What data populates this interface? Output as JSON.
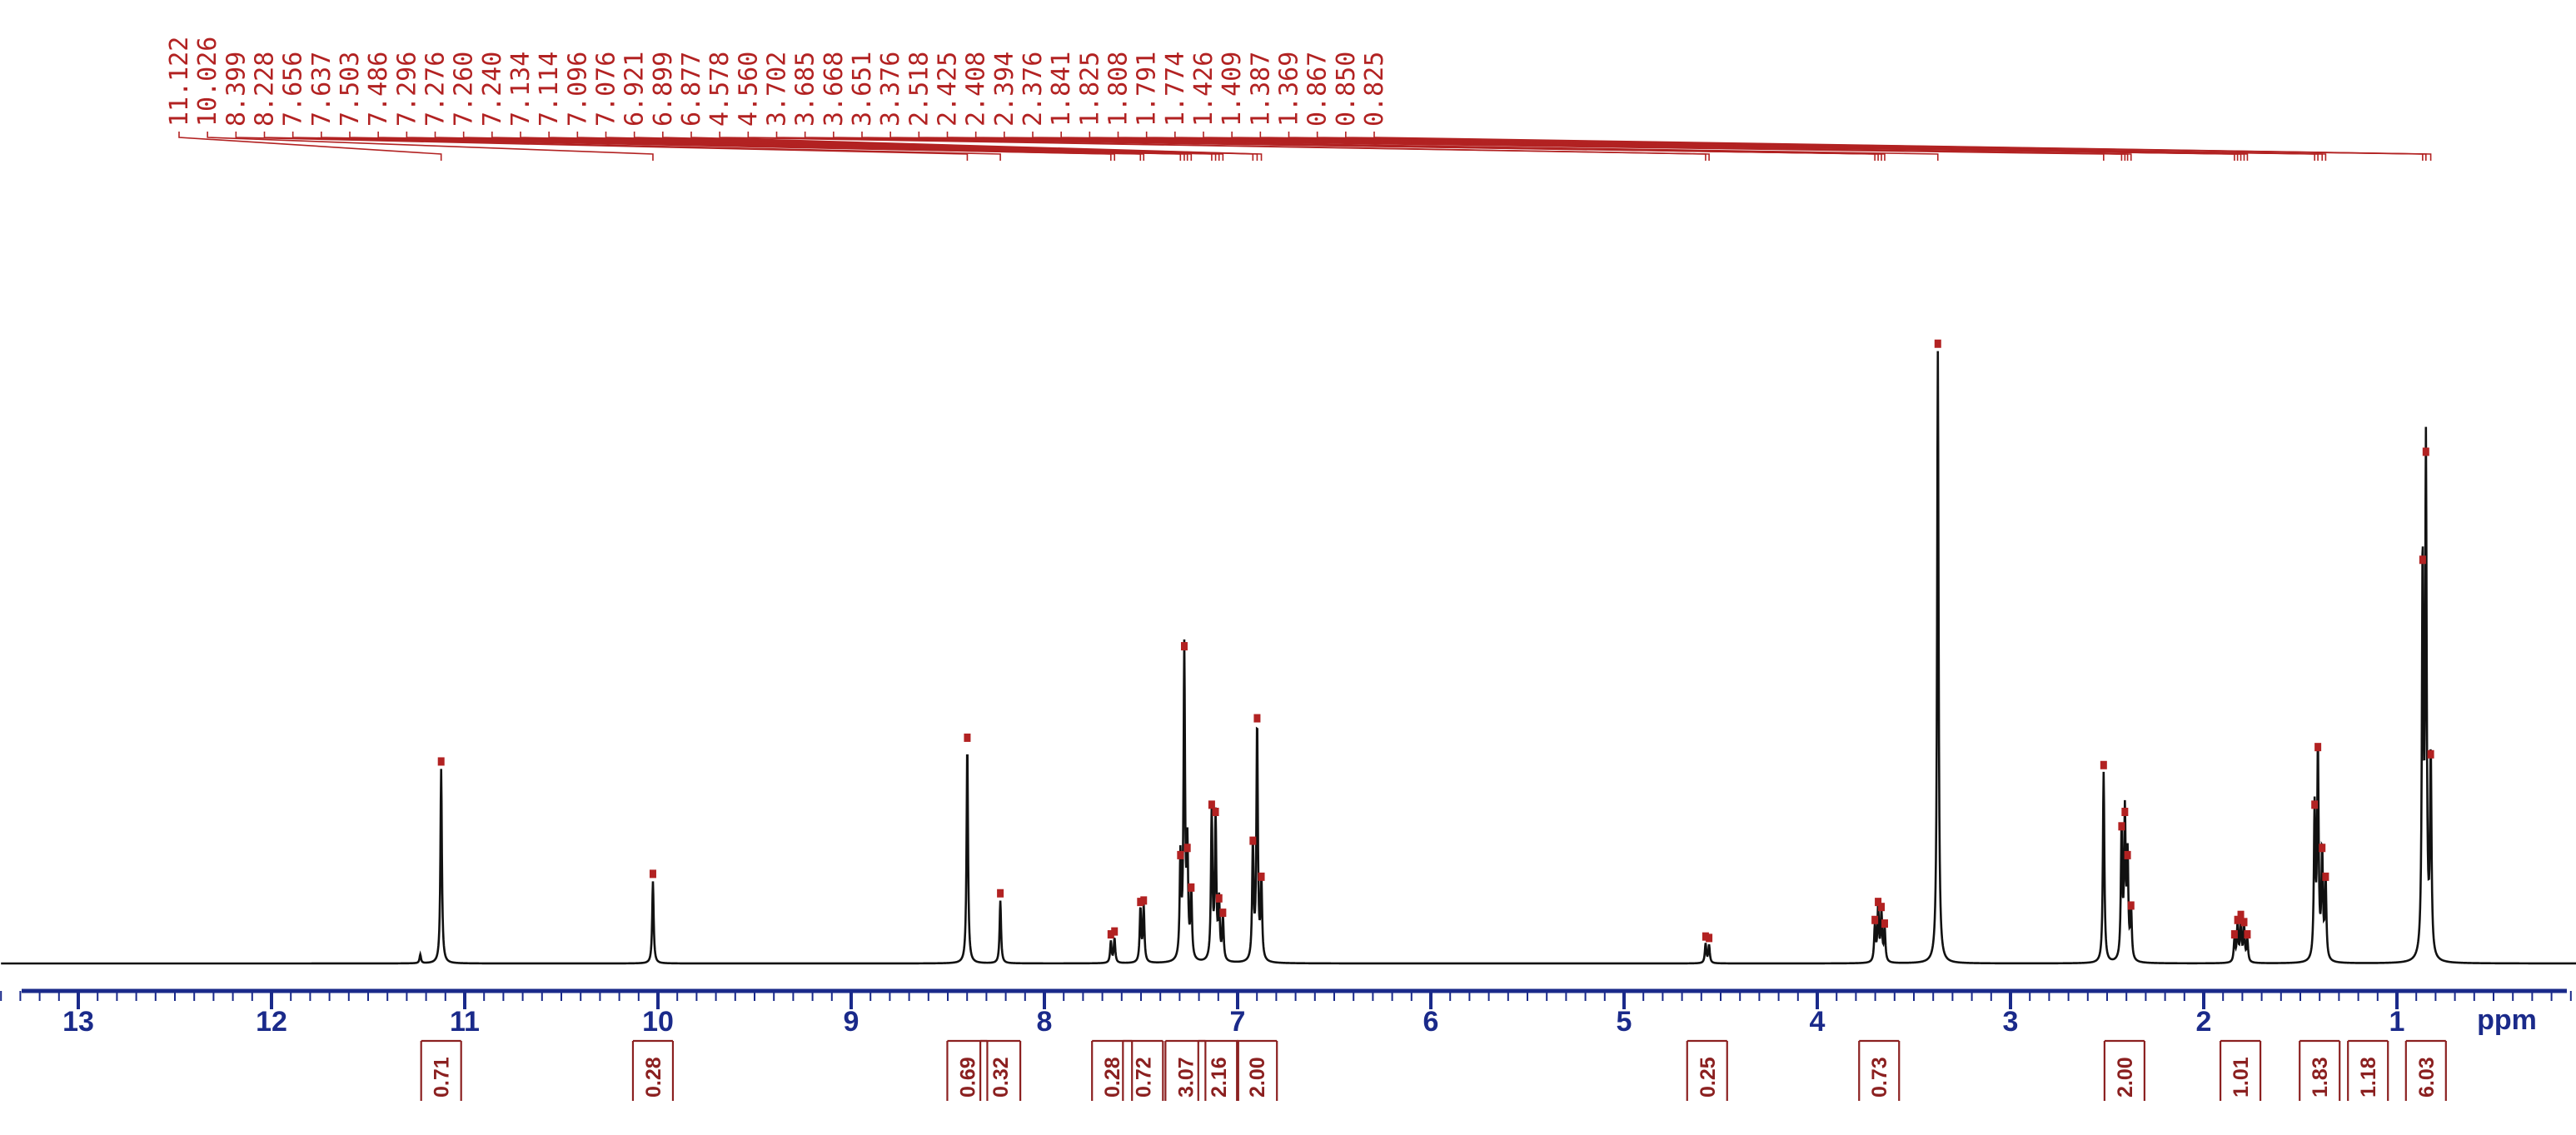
{
  "chart_data": {
    "type": "line",
    "title": "",
    "xlabel": "ppm",
    "ylabel": "",
    "x_reversed": true,
    "xlim": [
      13.4,
      -0.6
    ],
    "grid": false,
    "colors": {
      "spectrum": "#111111",
      "annotation": "#b22222",
      "axis": "#1a2a8a",
      "integral": "#8b2020"
    },
    "x_ticks": [
      {
        "value": 13,
        "label": "13"
      },
      {
        "value": 12,
        "label": "12"
      },
      {
        "value": 11,
        "label": "11"
      },
      {
        "value": 10,
        "label": "10"
      },
      {
        "value": 9,
        "label": "9"
      },
      {
        "value": 8,
        "label": "8"
      },
      {
        "value": 7,
        "label": "7"
      },
      {
        "value": 6,
        "label": "6"
      },
      {
        "value": 5,
        "label": "5"
      },
      {
        "value": 4,
        "label": "4"
      },
      {
        "value": 3,
        "label": "3"
      },
      {
        "value": 2,
        "label": "2"
      },
      {
        "value": 1,
        "label": "1"
      }
    ],
    "peak_labels": [
      "11.122",
      "10.026",
      "8.399",
      "8.228",
      "7.656",
      "7.637",
      "7.503",
      "7.486",
      "7.296",
      "7.276",
      "7.260",
      "7.240",
      "7.134",
      "7.114",
      "7.096",
      "7.076",
      "6.921",
      "6.899",
      "6.877",
      "4.578",
      "4.560",
      "3.702",
      "3.685",
      "3.668",
      "3.651",
      "3.376",
      "2.518",
      "2.425",
      "2.408",
      "2.394",
      "2.376",
      "1.841",
      "1.825",
      "1.808",
      "1.791",
      "1.774",
      "1.426",
      "1.409",
      "1.387",
      "1.369",
      "0.867",
      "0.850",
      "0.825"
    ],
    "peaks": [
      {
        "ppm": 11.23,
        "height": 0.012
      },
      {
        "ppm": 11.122,
        "height": 0.27
      },
      {
        "ppm": 10.026,
        "height": 0.114
      },
      {
        "ppm": 8.399,
        "height": 0.303
      },
      {
        "ppm": 8.228,
        "height": 0.087
      },
      {
        "ppm": 7.656,
        "height": 0.03
      },
      {
        "ppm": 7.637,
        "height": 0.034
      },
      {
        "ppm": 7.503,
        "height": 0.075
      },
      {
        "ppm": 7.486,
        "height": 0.077
      },
      {
        "ppm": 7.296,
        "height": 0.14
      },
      {
        "ppm": 7.276,
        "height": 0.43
      },
      {
        "ppm": 7.26,
        "height": 0.15
      },
      {
        "ppm": 7.24,
        "height": 0.095
      },
      {
        "ppm": 7.134,
        "height": 0.21
      },
      {
        "ppm": 7.114,
        "height": 0.2
      },
      {
        "ppm": 7.096,
        "height": 0.08
      },
      {
        "ppm": 7.076,
        "height": 0.06
      },
      {
        "ppm": 6.921,
        "height": 0.16
      },
      {
        "ppm": 6.899,
        "height": 0.33
      },
      {
        "ppm": 6.877,
        "height": 0.11
      },
      {
        "ppm": 4.578,
        "height": 0.027
      },
      {
        "ppm": 4.56,
        "height": 0.025
      },
      {
        "ppm": 3.702,
        "height": 0.05
      },
      {
        "ppm": 3.685,
        "height": 0.075
      },
      {
        "ppm": 3.668,
        "height": 0.068
      },
      {
        "ppm": 3.651,
        "height": 0.045
      },
      {
        "ppm": 3.376,
        "height": 0.85
      },
      {
        "ppm": 2.518,
        "height": 0.265
      },
      {
        "ppm": 2.425,
        "height": 0.18
      },
      {
        "ppm": 2.408,
        "height": 0.2
      },
      {
        "ppm": 2.394,
        "height": 0.14
      },
      {
        "ppm": 2.376,
        "height": 0.07
      },
      {
        "ppm": 1.841,
        "height": 0.03
      },
      {
        "ppm": 1.825,
        "height": 0.05
      },
      {
        "ppm": 1.808,
        "height": 0.057
      },
      {
        "ppm": 1.791,
        "height": 0.047
      },
      {
        "ppm": 1.774,
        "height": 0.03
      },
      {
        "ppm": 1.426,
        "height": 0.21
      },
      {
        "ppm": 1.409,
        "height": 0.29
      },
      {
        "ppm": 1.387,
        "height": 0.15
      },
      {
        "ppm": 1.369,
        "height": 0.11
      },
      {
        "ppm": 0.867,
        "height": 0.55
      },
      {
        "ppm": 0.85,
        "height": 0.7
      },
      {
        "ppm": 0.825,
        "height": 0.28
      }
    ],
    "integrals": [
      {
        "ppm": 11.122,
        "label": "0.71"
      },
      {
        "ppm": 10.026,
        "label": "0.28"
      },
      {
        "ppm": 8.399,
        "label": "0.69"
      },
      {
        "ppm": 8.228,
        "label": "0.32"
      },
      {
        "ppm": 7.65,
        "label": "0.28"
      },
      {
        "ppm": 7.49,
        "label": "0.72"
      },
      {
        "ppm": 7.27,
        "label": "3.07"
      },
      {
        "ppm": 7.1,
        "label": "2.16"
      },
      {
        "ppm": 6.9,
        "label": "2.00"
      },
      {
        "ppm": 4.57,
        "label": "0.25"
      },
      {
        "ppm": 3.68,
        "label": "0.73"
      },
      {
        "ppm": 2.41,
        "label": "2.00"
      },
      {
        "ppm": 1.81,
        "label": "1.01"
      },
      {
        "ppm": 1.4,
        "label": "1.83"
      },
      {
        "ppm": 1.15,
        "label": "1.18"
      },
      {
        "ppm": 0.85,
        "label": "6.03"
      }
    ]
  }
}
